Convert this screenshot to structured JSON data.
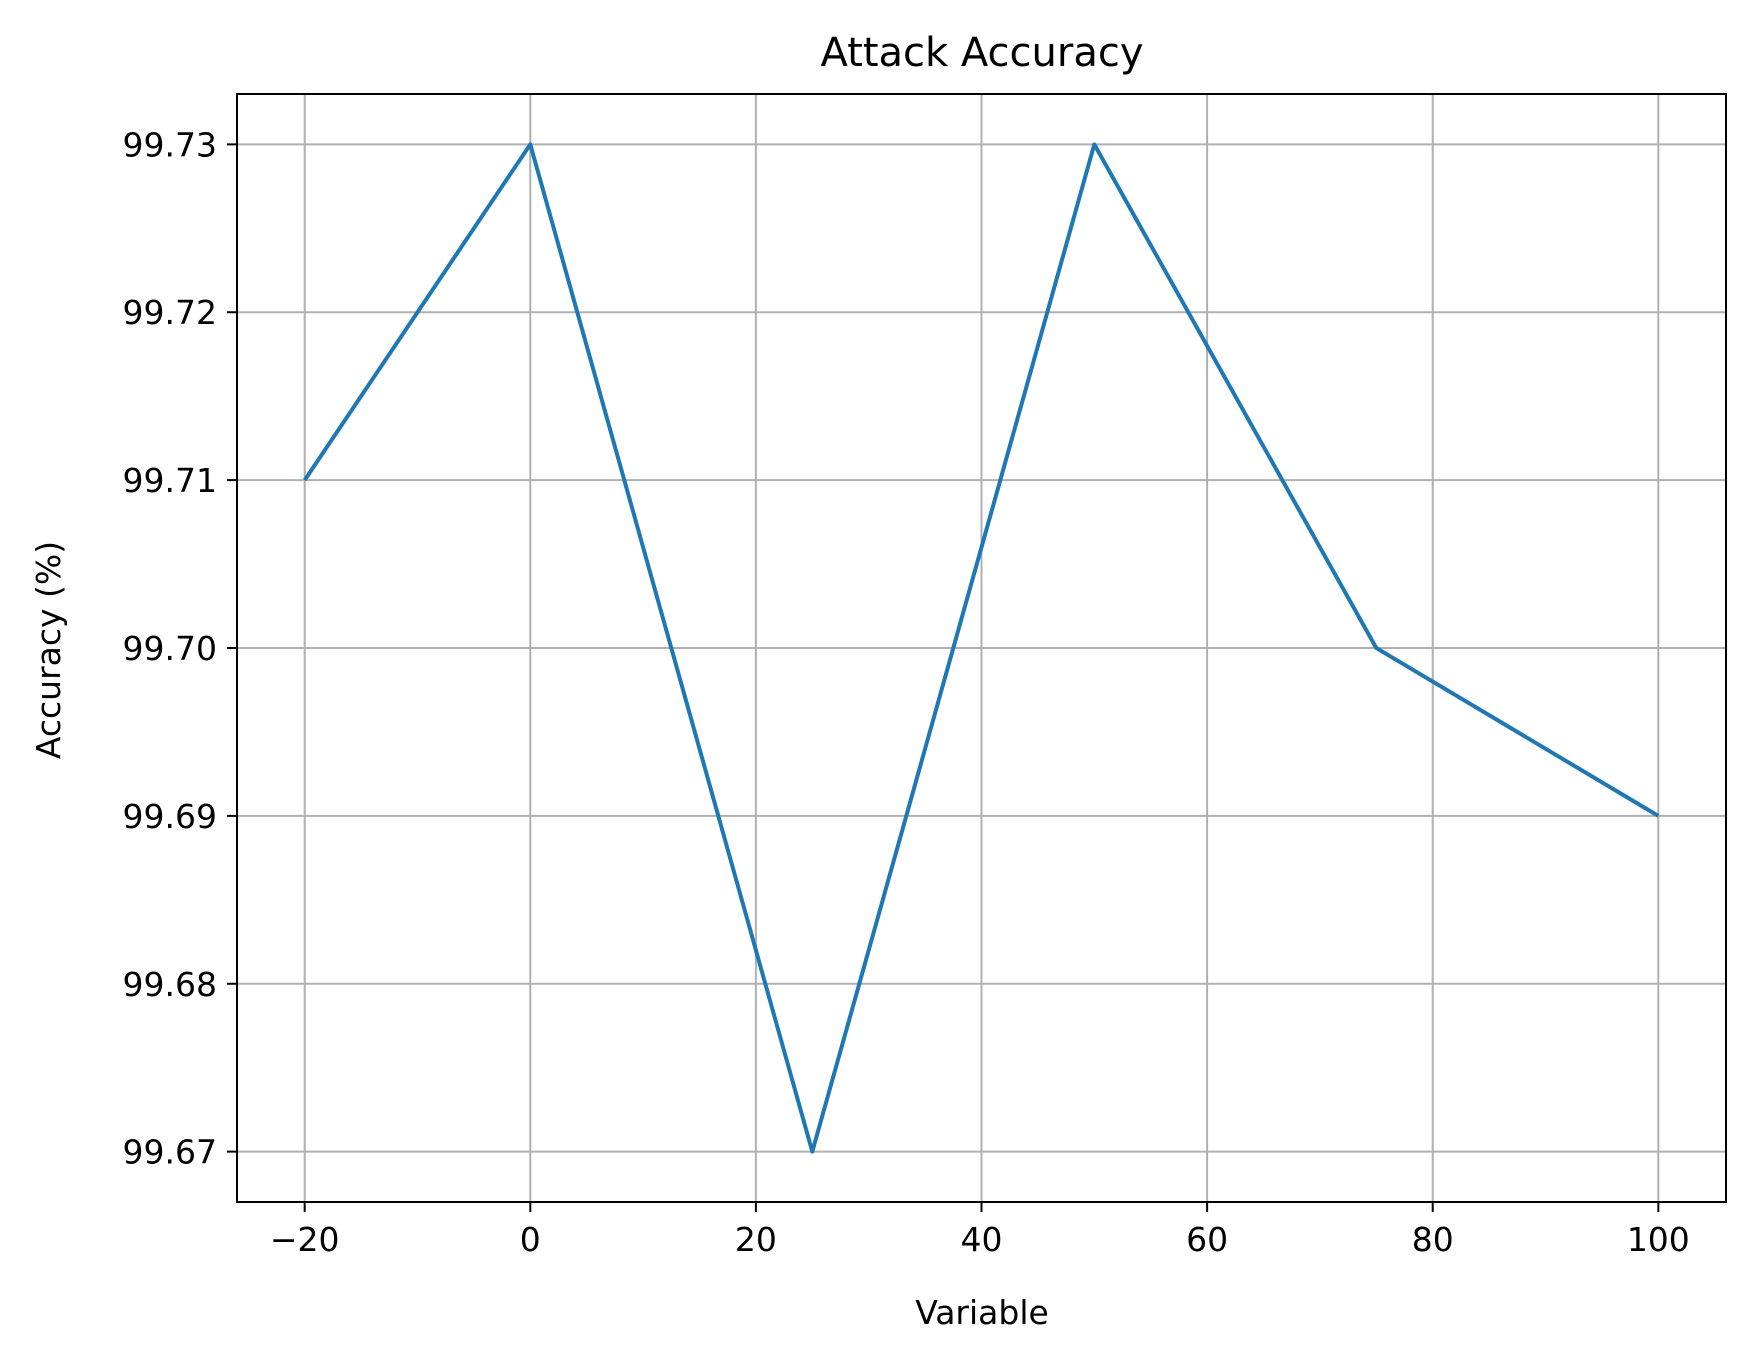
{
  "chart_data": {
    "type": "line",
    "title": "Attack Accuracy",
    "xlabel": "Variable",
    "ylabel": "Accuracy (%)",
    "x": [
      -20,
      0,
      25,
      50,
      75,
      100
    ],
    "series": [
      {
        "values": [
          99.71,
          99.73,
          99.67,
          99.73,
          99.7,
          99.69
        ],
        "color": "#1f77b4"
      }
    ],
    "xlim": [
      -26,
      106
    ],
    "ylim": [
      99.667,
      99.733
    ],
    "xticks": [
      -20,
      0,
      20,
      40,
      60,
      80,
      100
    ],
    "xtick_labels": [
      "−20",
      "0",
      "20",
      "40",
      "60",
      "80",
      "100"
    ],
    "yticks": [
      99.67,
      99.68,
      99.69,
      99.7,
      99.71,
      99.72,
      99.73
    ],
    "ytick_labels": [
      "99.67",
      "99.68",
      "99.69",
      "99.70",
      "99.71",
      "99.72",
      "99.73"
    ],
    "grid": true,
    "grid_color": "#b0b0b0",
    "legend": "none"
  }
}
